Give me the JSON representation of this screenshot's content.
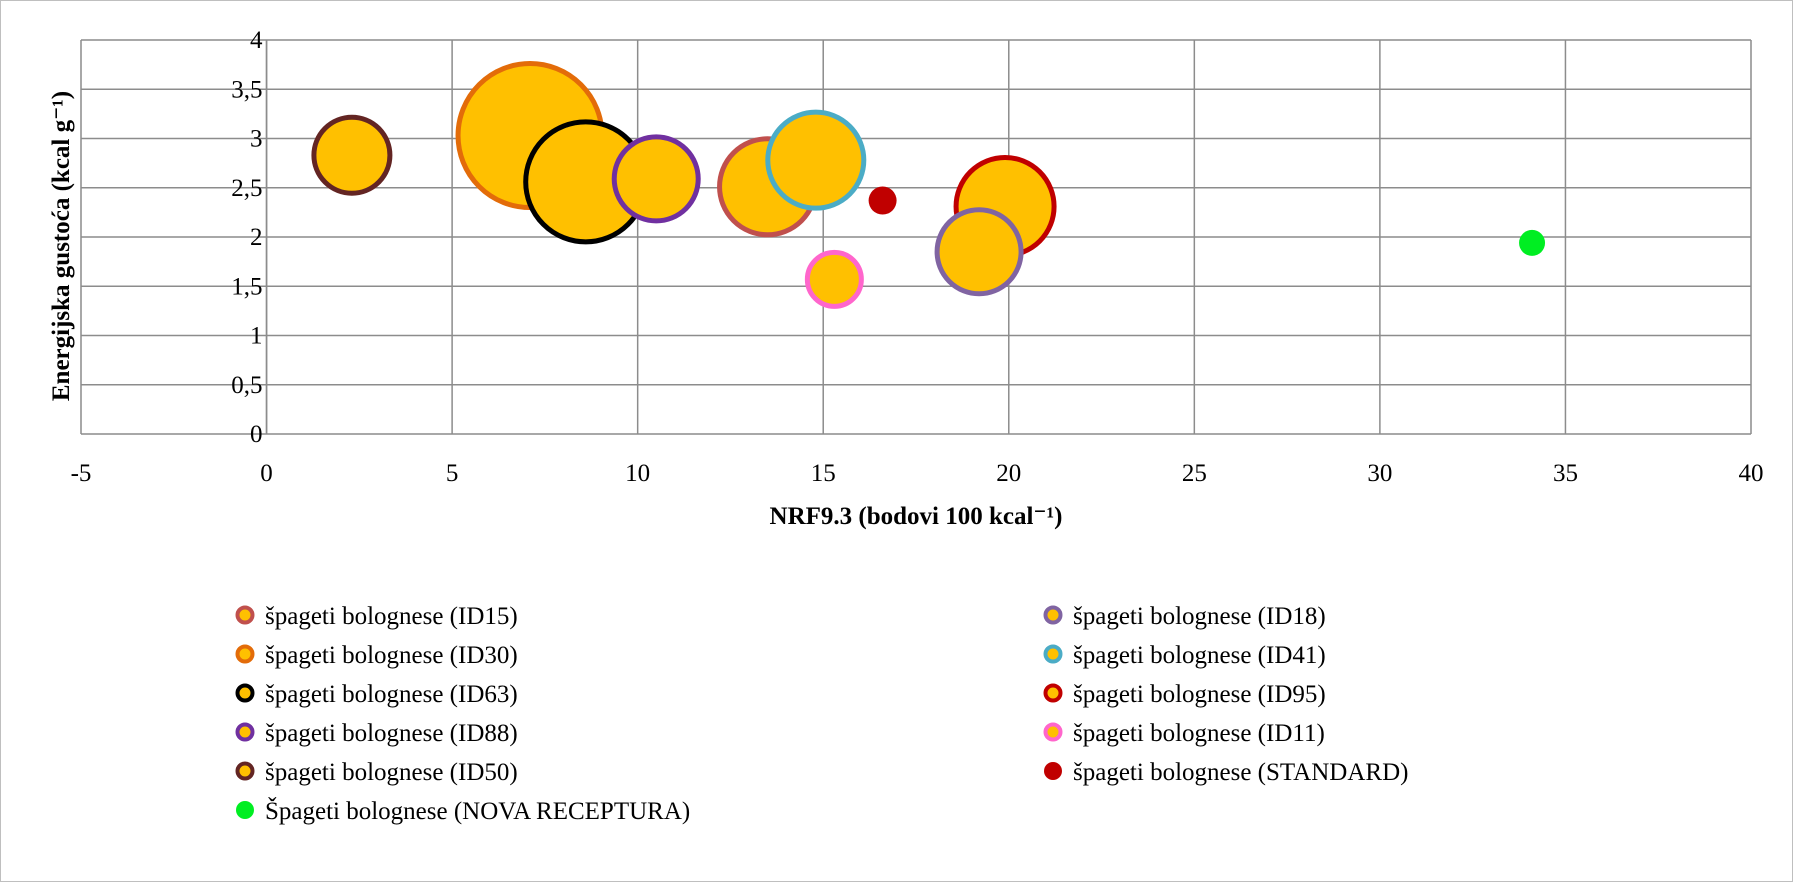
{
  "chart_data": {
    "type": "bubble",
    "xlabel": "NRF9.3 (bodovi 100 kcal⁻¹)",
    "ylabel": "Energijska gustoća (kcal g⁻¹)",
    "xlim": [
      -5,
      40
    ],
    "ylim": [
      0,
      4
    ],
    "x_ticks": [
      "-5",
      "0",
      "5",
      "10",
      "15",
      "20",
      "25",
      "30",
      "35",
      "40"
    ],
    "y_ticks": [
      "0",
      "0,5",
      "1",
      "1,5",
      "2",
      "2,5",
      "3",
      "3,5",
      "4"
    ],
    "grid": true,
    "legend_position": "bottom",
    "series": [
      {
        "name": "špageti bolognese (ID15)",
        "x": 13.5,
        "y": 2.51,
        "size": 48,
        "fill": "#ffc000",
        "border": "#c0504d"
      },
      {
        "name": "špageti bolognese (ID18)",
        "x": 19.2,
        "y": 1.85,
        "size": 42,
        "fill": "#ffc000",
        "border": "#8064a2"
      },
      {
        "name": "špageti bolognese (ID30)",
        "x": 7.1,
        "y": 3.03,
        "size": 72,
        "fill": "#ffc000",
        "border": "#e36c09"
      },
      {
        "name": "špageti bolognese (ID41)",
        "x": 14.8,
        "y": 2.78,
        "size": 48,
        "fill": "#ffc000",
        "border": "#4bacc6"
      },
      {
        "name": "špageti bolognese (ID63)",
        "x": 8.6,
        "y": 2.56,
        "size": 60,
        "fill": "#ffc000",
        "border": "#000000"
      },
      {
        "name": "špageti bolognese (ID95)",
        "x": 19.9,
        "y": 2.31,
        "size": 49,
        "fill": "#ffc000",
        "border": "#c00000"
      },
      {
        "name": "špageti bolognese (ID88)",
        "x": 10.5,
        "y": 2.59,
        "size": 42,
        "fill": "#ffc000",
        "border": "#7030a0"
      },
      {
        "name": "špageti bolognese (ID11)",
        "x": 15.3,
        "y": 1.57,
        "size": 27,
        "fill": "#ffc000",
        "border": "#ff66cc"
      },
      {
        "name": "špageti bolognese (ID50)",
        "x": 2.3,
        "y": 2.83,
        "size": 38,
        "fill": "#ffc000",
        "border": "#632523"
      },
      {
        "name": "špageti bolognese (STANDARD)",
        "x": 16.6,
        "y": 2.37,
        "size": 14,
        "fill": "#c00000",
        "border": "#c00000"
      },
      {
        "name": "Špageti bolognese (NOVA RECEPTURA)",
        "x": 34.1,
        "y": 1.94,
        "size": 13,
        "fill": "#00ee22",
        "border": "#00ee22"
      }
    ]
  }
}
